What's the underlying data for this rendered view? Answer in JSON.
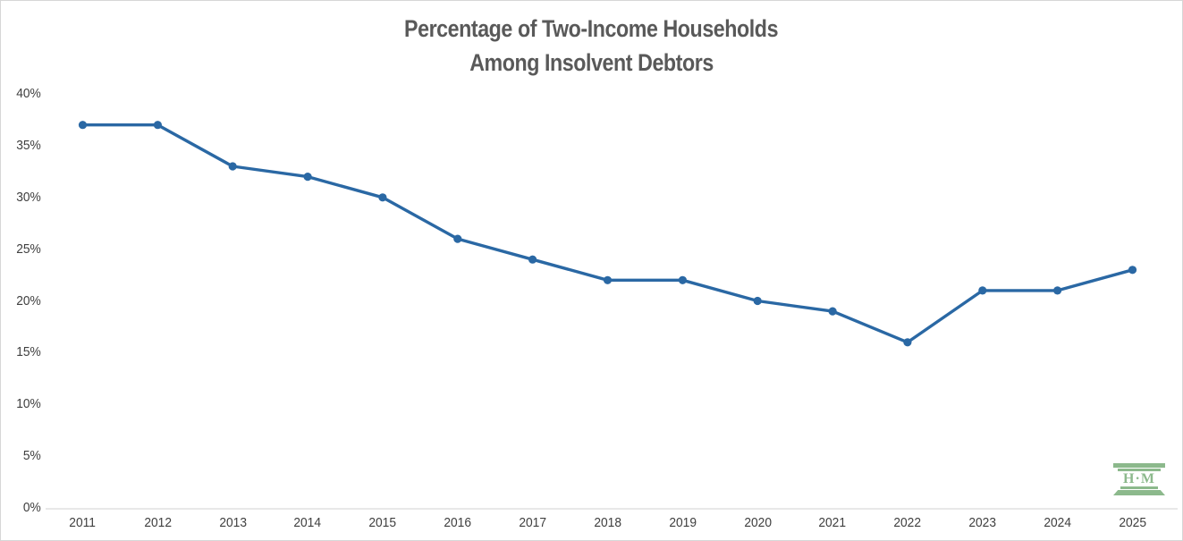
{
  "title": {
    "line1": "Percentage of Two-Income Households",
    "line2": "Among Insolvent Debtors"
  },
  "chart_data": {
    "type": "line",
    "categories": [
      "2011",
      "2012",
      "2013",
      "2014",
      "2015",
      "2016",
      "2017",
      "2018",
      "2019",
      "2020",
      "2021",
      "2022",
      "2023",
      "2024",
      "2025"
    ],
    "values": [
      37,
      37,
      33,
      32,
      30,
      26,
      24,
      22,
      22,
      20,
      19,
      16,
      21,
      21,
      23
    ],
    "title": "Percentage of Two-Income Households Among Insolvent Debtors",
    "xlabel": "",
    "ylabel": "",
    "ylim": [
      0,
      40
    ],
    "ytick_step": 5,
    "ytick_labels": [
      "0%",
      "5%",
      "10%",
      "15%",
      "20%",
      "25%",
      "30%",
      "35%",
      "40%"
    ],
    "grid": false,
    "legend": "none",
    "line_color": "#2a68a4",
    "marker": "circle",
    "axis_line_color": "#d9d9d9"
  },
  "logo": {
    "text": "H·M",
    "color": "#8cb98c"
  }
}
